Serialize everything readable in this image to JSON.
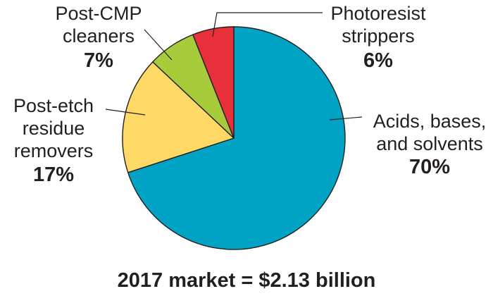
{
  "chart_data": {
    "type": "pie",
    "start_angle": "12 o'clock, clockwise",
    "slices": [
      {
        "label": [
          "Acids, bases,",
          "and solvents"
        ],
        "percent_label": "70%",
        "value": 70,
        "color": "#00a3c4"
      },
      {
        "label": [
          "Post-etch",
          "residue",
          "removers"
        ],
        "percent_label": "17%",
        "value": 17,
        "color": "#ffd966"
      },
      {
        "label": [
          "Post-CMP",
          "cleaners"
        ],
        "percent_label": "7%",
        "value": 7,
        "color": "#a7cb3a"
      },
      {
        "label": [
          "Photoresist",
          "strippers"
        ],
        "percent_label": "6%",
        "value": 6,
        "color": "#e8303a"
      }
    ],
    "caption": "2017 market = $2.13 billion"
  }
}
